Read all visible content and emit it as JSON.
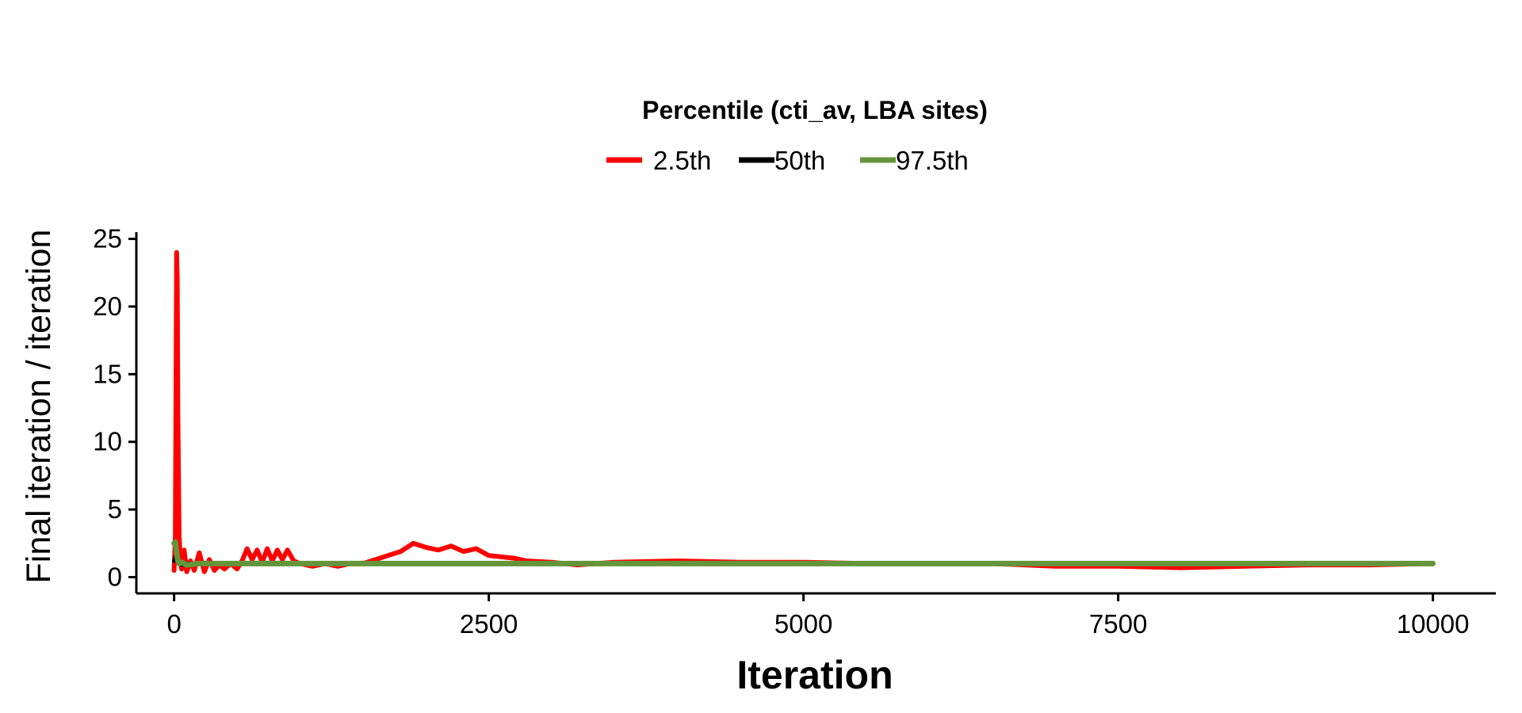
{
  "chart_data": {
    "type": "line",
    "xlabel": "Iteration",
    "ylabel": "Final iteration / iteration",
    "xlim": [
      -300,
      10500
    ],
    "ylim": [
      -1.2,
      25.5
    ],
    "x_ticks": [
      0,
      2500,
      5000,
      7500,
      10000
    ],
    "x_tick_labels": [
      "0",
      "2500",
      "5000",
      "7500",
      "10000"
    ],
    "y_ticks": [
      0,
      5,
      10,
      15,
      20,
      25
    ],
    "y_tick_labels": [
      "0",
      "5",
      "10",
      "15",
      "20",
      "25"
    ],
    "grid": false,
    "legend": {
      "title": "Percentile (cti_av, LBA sites)",
      "position": "top-center"
    },
    "series": [
      {
        "name": "2.5th",
        "color": "#ff0000",
        "x": [
          0,
          10,
          20,
          25,
          30,
          40,
          50,
          60,
          80,
          100,
          130,
          160,
          200,
          240,
          280,
          320,
          360,
          400,
          450,
          500,
          540,
          580,
          620,
          660,
          700,
          740,
          780,
          820,
          860,
          900,
          950,
          1000,
          1100,
          1200,
          1300,
          1400,
          1500,
          1600,
          1700,
          1800,
          1900,
          2000,
          2100,
          2200,
          2300,
          2400,
          2500,
          2600,
          2700,
          2800,
          3000,
          3200,
          3500,
          4000,
          4500,
          5000,
          5500,
          6000,
          6500,
          7000,
          7500,
          8000,
          8500,
          9000,
          9500,
          10000
        ],
        "y": [
          0.5,
          3.0,
          24.0,
          22.0,
          12.0,
          3.0,
          1.2,
          0.6,
          2.0,
          0.4,
          1.2,
          0.5,
          1.8,
          0.4,
          1.3,
          0.5,
          0.9,
          0.6,
          1.0,
          0.6,
          1.2,
          2.1,
          1.3,
          2.0,
          1.1,
          2.1,
          1.2,
          2.0,
          1.3,
          2.0,
          1.2,
          1.0,
          0.8,
          1.0,
          0.8,
          1.0,
          1.0,
          1.3,
          1.6,
          1.9,
          2.5,
          2.2,
          2.0,
          2.3,
          1.9,
          2.1,
          1.6,
          1.5,
          1.4,
          1.2,
          1.1,
          0.9,
          1.1,
          1.2,
          1.1,
          1.1,
          1.0,
          1.0,
          1.0,
          0.8,
          0.8,
          0.7,
          0.8,
          0.9,
          0.9,
          1.0
        ]
      },
      {
        "name": "50th",
        "color": "#000000",
        "x": [
          0,
          10,
          20,
          40,
          60,
          100,
          200,
          500,
          1000,
          2000,
          3000,
          5000,
          7500,
          10000
        ],
        "y": [
          1.2,
          1.5,
          1.3,
          1.1,
          0.9,
          1.0,
          1.0,
          1.0,
          1.0,
          1.0,
          1.0,
          1.0,
          1.0,
          1.0
        ]
      },
      {
        "name": "97.5th",
        "color": "#64953a",
        "x": [
          0,
          10,
          20,
          30,
          40,
          60,
          100,
          200,
          500,
          1000,
          2000,
          3000,
          5000,
          7500,
          10000
        ],
        "y": [
          2.5,
          2.6,
          1.8,
          1.2,
          1.0,
          1.1,
          0.9,
          1.0,
          1.0,
          1.0,
          1.0,
          1.0,
          1.0,
          1.0,
          1.0
        ]
      }
    ]
  }
}
